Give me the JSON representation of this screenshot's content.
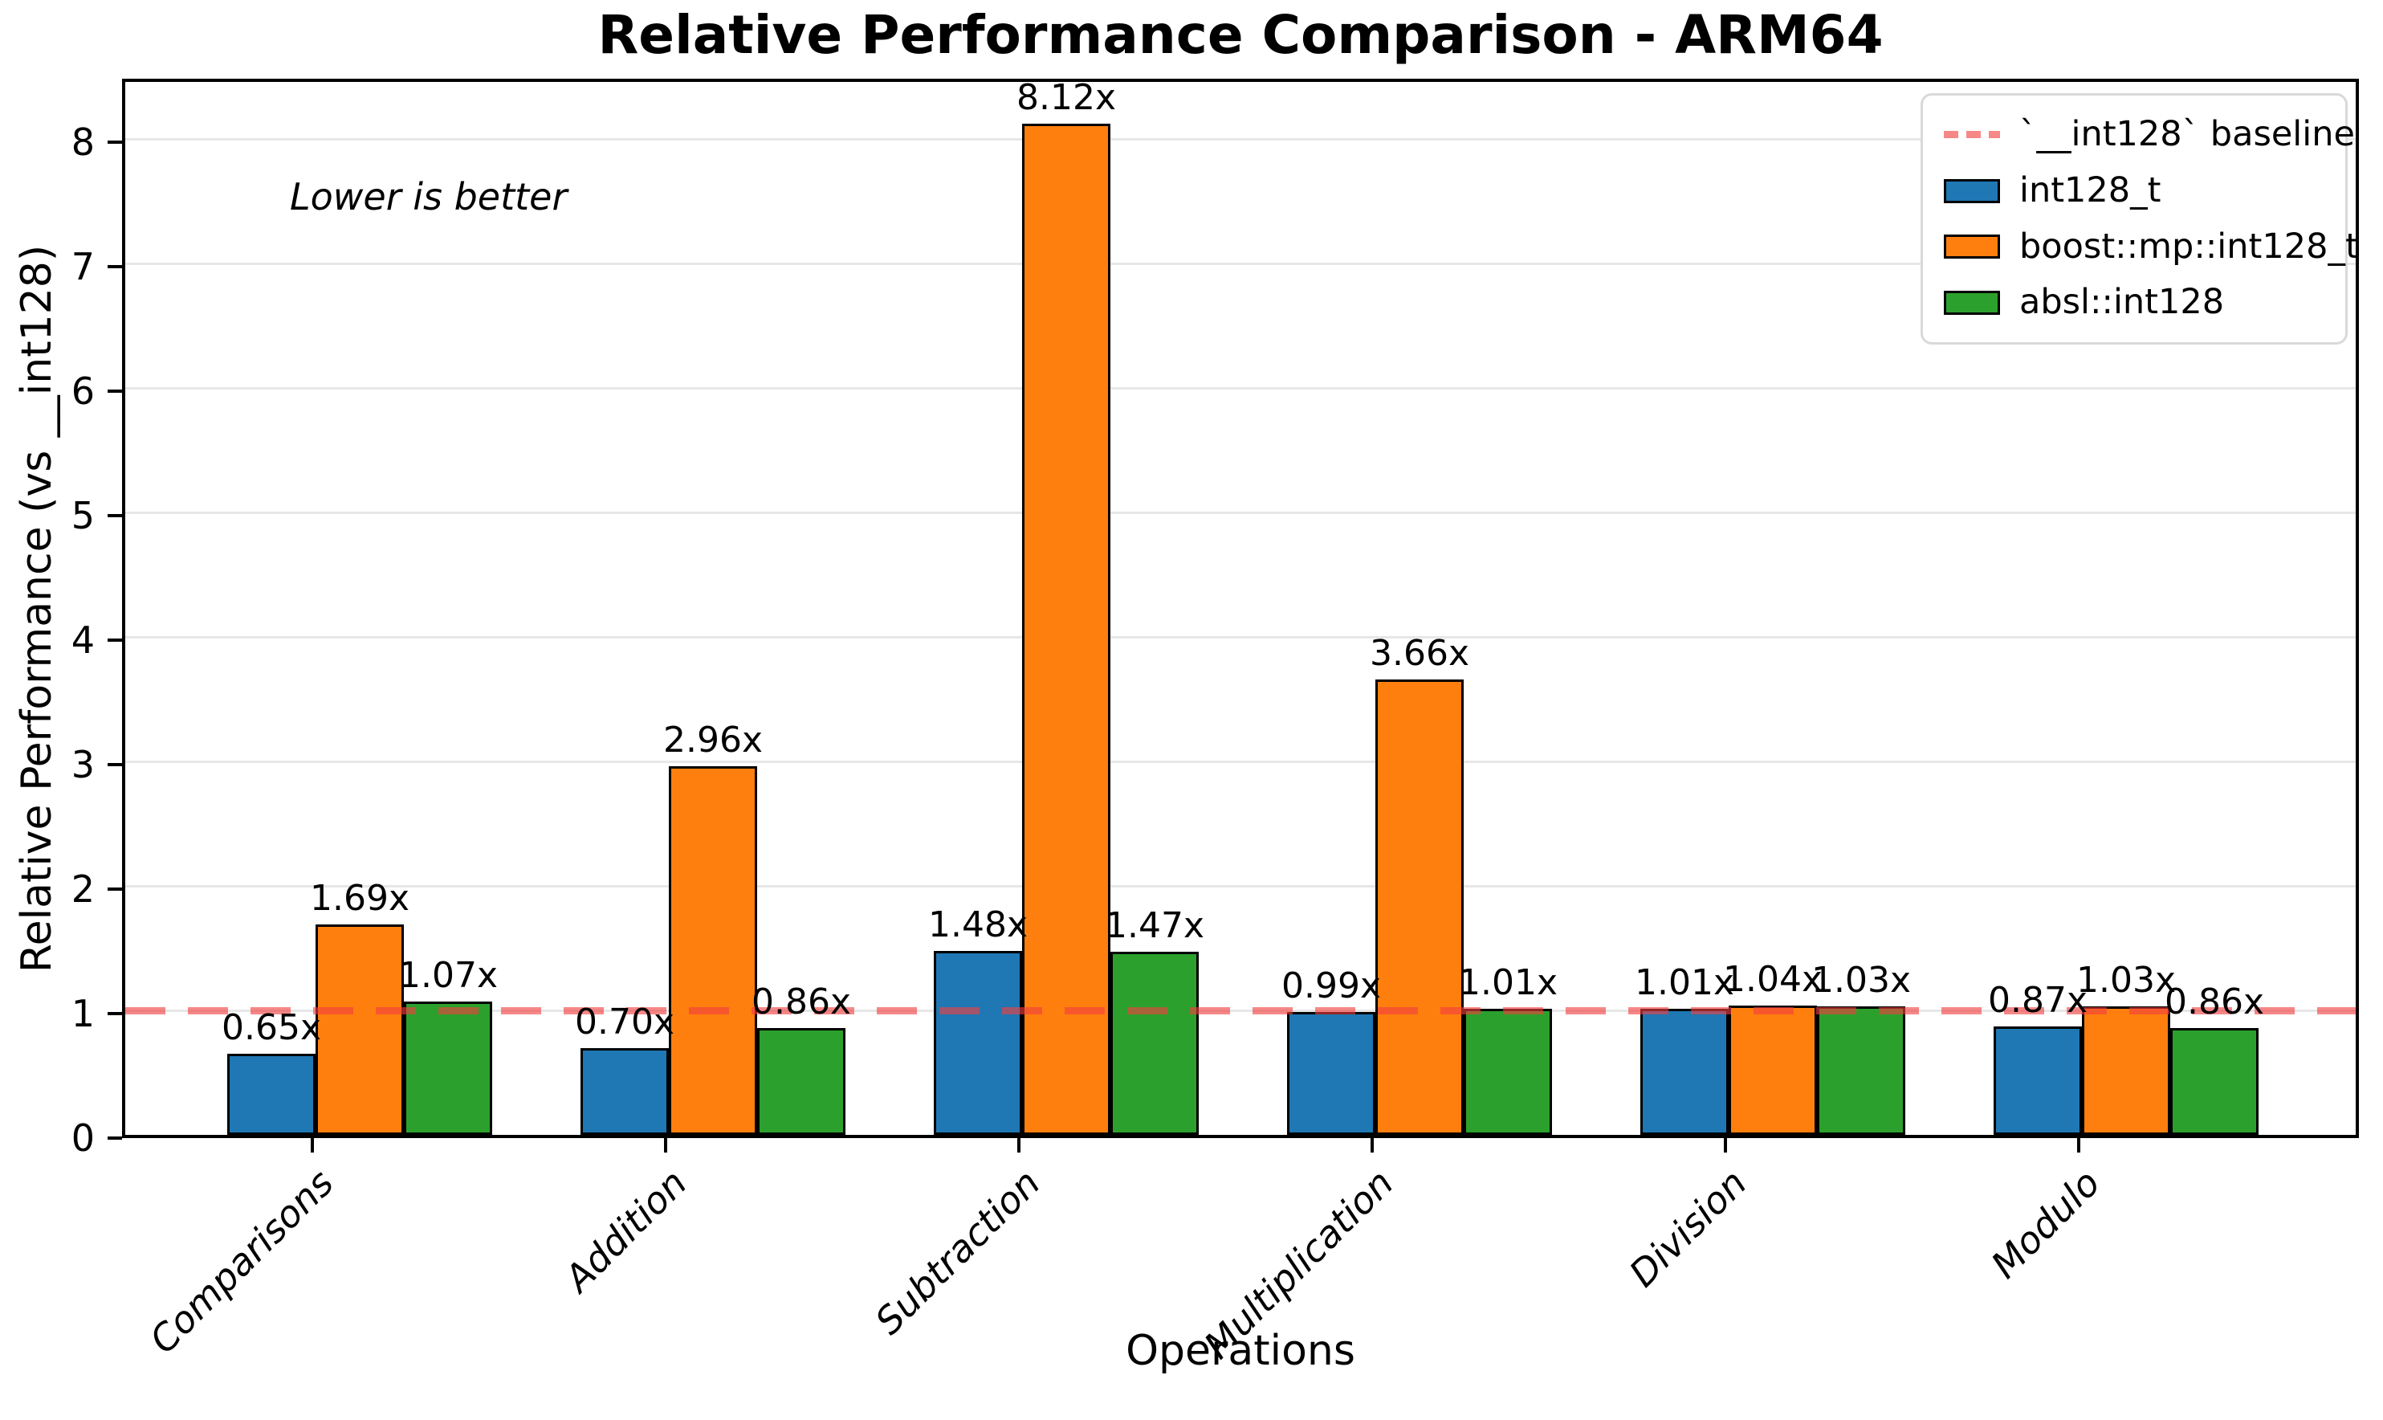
{
  "title": "Relative Performance Comparison - ARM64",
  "annotation": "Lower is better",
  "chart_data": {
    "type": "bar",
    "title": "Relative Performance Comparison - ARM64",
    "xlabel": "Operations",
    "ylabel": "Relative Performance (vs __int128)",
    "categories": [
      "Comparisons",
      "Addition",
      "Subtraction",
      "Multiplication",
      "Division",
      "Modulo"
    ],
    "series": [
      {
        "name": "int128_t",
        "color": "#1f77b4",
        "values": [
          0.65,
          0.7,
          1.48,
          0.99,
          1.01,
          0.87
        ],
        "labels": [
          "0.65x",
          "0.70x",
          "1.48x",
          "0.99x",
          "1.01x",
          "0.87x"
        ]
      },
      {
        "name": "boost::mp::int128_t",
        "color": "#ff7f0e",
        "values": [
          1.69,
          2.96,
          8.12,
          3.66,
          1.04,
          1.03
        ],
        "labels": [
          "1.69x",
          "2.96x",
          "8.12x",
          "3.66x",
          "1.04x",
          "1.03x"
        ]
      },
      {
        "name": "absl::int128",
        "color": "#2ca02c",
        "values": [
          1.07,
          0.86,
          1.47,
          1.01,
          1.03,
          0.86
        ],
        "labels": [
          "1.07x",
          "0.86x",
          "1.47x",
          "1.01x",
          "1.03x",
          "0.86x"
        ]
      }
    ],
    "baseline": {
      "label": "`__int128` baseline",
      "value": 1,
      "color": "rgba(242,62,62,0.62)",
      "style": "dashed"
    },
    "annotation": "Lower is better",
    "yticks": [
      0,
      1,
      2,
      3,
      4,
      5,
      6,
      7,
      8
    ],
    "ylim": [
      0,
      8.51
    ],
    "grid": true,
    "legend_position": "upper right"
  }
}
